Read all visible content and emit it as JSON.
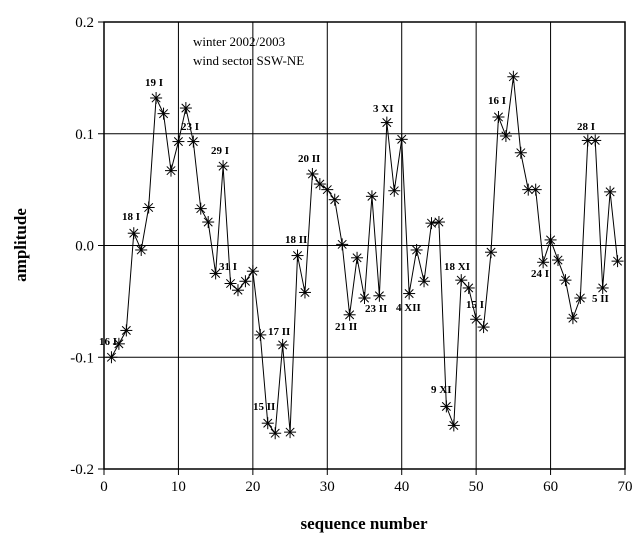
{
  "chart_data": {
    "type": "line",
    "x_label": "sequence number",
    "y_label": "amplitude",
    "note_lines": [
      "winter 2002/2003",
      "wind sector SSW-NE"
    ],
    "x": [
      1,
      2,
      3,
      4,
      5,
      6,
      7,
      8,
      9,
      10,
      11,
      12,
      13,
      14,
      15,
      16,
      17,
      18,
      19,
      20,
      21,
      22,
      23,
      24,
      25,
      26,
      27,
      28,
      29,
      30,
      31,
      32,
      33,
      34,
      35,
      36,
      37,
      38,
      39,
      40,
      41,
      42,
      43,
      44,
      45,
      46,
      47,
      48,
      49,
      50,
      51,
      52,
      53,
      54,
      55,
      56,
      57,
      58,
      59,
      60,
      61,
      62,
      63,
      64,
      65,
      66,
      67,
      68,
      69
    ],
    "series": [
      {
        "color": "#000000",
        "values": [
          -0.1,
          -0.088,
          -0.076,
          0.011,
          -0.004,
          0.034,
          0.132,
          0.118,
          0.067,
          0.093,
          0.123,
          0.093,
          0.033,
          0.021,
          -0.025,
          0.071,
          -0.034,
          -0.04,
          -0.032,
          -0.023,
          -0.08,
          -0.159,
          -0.168,
          -0.089,
          -0.167,
          -0.009,
          -0.042,
          0.064,
          0.055,
          0.05,
          0.041,
          0.001,
          -0.062,
          -0.011,
          -0.047,
          0.044,
          -0.045,
          0.11,
          0.049,
          0.095,
          -0.043,
          -0.004,
          -0.032,
          0.02,
          0.021,
          -0.144,
          -0.161,
          -0.031,
          -0.038,
          -0.066,
          -0.073,
          -0.006,
          0.115,
          0.098,
          0.151,
          0.083,
          0.05,
          0.05,
          -0.015,
          0.005,
          -0.013,
          -0.031,
          -0.065,
          -0.047,
          0.094,
          0.094,
          -0.038,
          0.048,
          -0.014
        ]
      }
    ],
    "annotations": [
      "16 I",
      "18 I",
      "19 I",
      "23 I",
      "29 I",
      "31 I",
      "15 II",
      "17 II",
      "18 II",
      "20 II",
      "21 II",
      "23 II",
      "3 XI",
      "4 XII",
      "9 XI",
      "18 XI",
      "15 I",
      "16 I",
      "24 I",
      "28 I",
      "5 II"
    ],
    "xlim": [
      0,
      70
    ],
    "xticks": [
      0,
      10,
      20,
      30,
      40,
      50,
      60,
      70
    ],
    "ylim": [
      -0.2,
      0.2
    ],
    "yticks": [
      -0.2,
      -0.1,
      {
        "value": 0,
        "label": "0.0"
      },
      0.1,
      0.2
    ],
    "grid": true
  }
}
